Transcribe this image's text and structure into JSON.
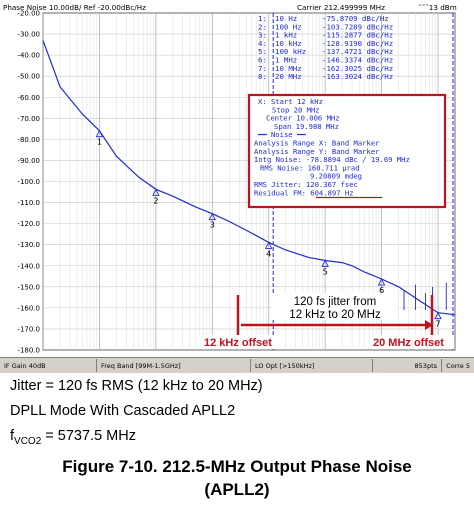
{
  "header": {
    "left": "Phase Noise 10.00dB/ Ref -20.00dBc/Hz",
    "carrier": "Carrier 212.499999 MHz",
    "indicator": "˜˜˜13 dBm"
  },
  "markers": [
    {
      "num": "1:",
      "freq": "10 Hz",
      "val": "-75.8709 dBc/Hz"
    },
    {
      "num": "2:",
      "freq": "100 Hz",
      "val": "-103.7289 dBc/Hz"
    },
    {
      "num": "3:",
      "freq": "1 kHz",
      "val": "-115.2877 dBc/Hz"
    },
    {
      "num": "4:",
      "freq": "10 kHz",
      "val": "-128.9190 dBc/Hz"
    },
    {
      "num": "5:",
      "freq": "100 kHz",
      "val": "-137.4721 dBc/Hz"
    },
    {
      "num": "6:",
      "freq": "1 MHz",
      "val": "-146.3374 dBc/Hz"
    },
    {
      "num": "7:",
      "freq": "10 MHz",
      "val": "-162.3025 dBc/Hz"
    },
    {
      "num": "8:",
      "freq": "20 MHz",
      "val": "-163.3024 dBc/Hz"
    }
  ],
  "noise_box": [
    "X: Start 12 kHz",
    "Stop 20 MHz",
    "Center 10.006 MHz",
    "Span 19.988 MHz",
    "━━ Noise ━━",
    "Analysis Range X: Band Marker",
    "Analysis Range Y: Band Marker",
    "Intg Noise: -78.8894 dBc / 19.69 MHz",
    "RMS Noise: 160.711 µrad",
    "9.20809 mdeg",
    "RMS Jitter: 120.367 fsec",
    "Residual FM: 604.897 Hz"
  ],
  "annotations": {
    "jitter_text_1": "120 fs jitter from",
    "jitter_text_2": "12 kHz to 20 MHz",
    "left_offset": "12 kHz offset",
    "right_offset": "20 MHz offset"
  },
  "statusbar": {
    "if_gain": "IF Gain 40dB",
    "freq_band": "Freq Band [99M-1.5GHz]",
    "lo_opt": "LO Opt [>150kHz]",
    "points": "853pts",
    "corr": "Corre 5"
  },
  "caption": {
    "line1": "Jitter = 120 fs RMS (12 kHz to 20 MHz)",
    "line2": "DPLL Mode With Cascaded APLL2",
    "line3_main": "f",
    "line3_sub": "VCO2",
    "line3_rest": " = 5737.5 MHz",
    "title1": "Figure 7-10. 212.5-MHz Output Phase Noise",
    "title2": "(APLL2)"
  },
  "colors": {
    "trace": "#1f2ad4",
    "marker_text": "#1f2ad4",
    "annotation": "#c0121f",
    "grid": "#c8c8c8"
  },
  "chart_data": {
    "type": "line",
    "title": "Phase Noise 10.00dB/ Ref -20.00dBc/Hz",
    "xscale": "log",
    "xlim": [
      1,
      20000000
    ],
    "ylim": [
      -180,
      -20
    ],
    "ylabel_ticks": [
      "-20.00",
      "-30.00",
      "-40.00",
      "-50.00",
      "-60.00",
      "-70.00",
      "-80.00",
      "-90.00",
      "-100.0",
      "-110.0",
      "-120.0",
      "-130.0",
      "-140.0",
      "-150.0",
      "-160.0",
      "-170.0",
      "-180.0"
    ],
    "grid": true,
    "series": [
      {
        "x": [
          1,
          2,
          5,
          10,
          20,
          50,
          100,
          200,
          500,
          1000,
          2000,
          5000,
          10000,
          20000,
          50000,
          100000,
          200000,
          300000,
          500000,
          1000000,
          2000000,
          5000000,
          10000000,
          20000000
        ],
        "y": [
          -33,
          -55,
          -68,
          -75.9,
          -88,
          -98,
          -103.7,
          -107,
          -112,
          -115.3,
          -119,
          -124.5,
          -128.9,
          -132.5,
          -136,
          -137.5,
          -138.5,
          -140,
          -143,
          -146.3,
          -150,
          -157,
          -162.3,
          -163.3
        ]
      }
    ],
    "marker_points": [
      {
        "label": "1",
        "x": 10,
        "y": -75.8709
      },
      {
        "label": "2",
        "x": 100,
        "y": -103.7289
      },
      {
        "label": "3",
        "x": 1000,
        "y": -115.2877
      },
      {
        "label": "4",
        "x": 10000,
        "y": -128.919
      },
      {
        "label": "5",
        "x": 100000,
        "y": -137.4721
      },
      {
        "label": "6",
        "x": 1000000,
        "y": -146.3374
      },
      {
        "label": "7",
        "x": 10000000,
        "y": -162.3025
      }
    ],
    "band": [
      12000,
      20000000
    ]
  }
}
